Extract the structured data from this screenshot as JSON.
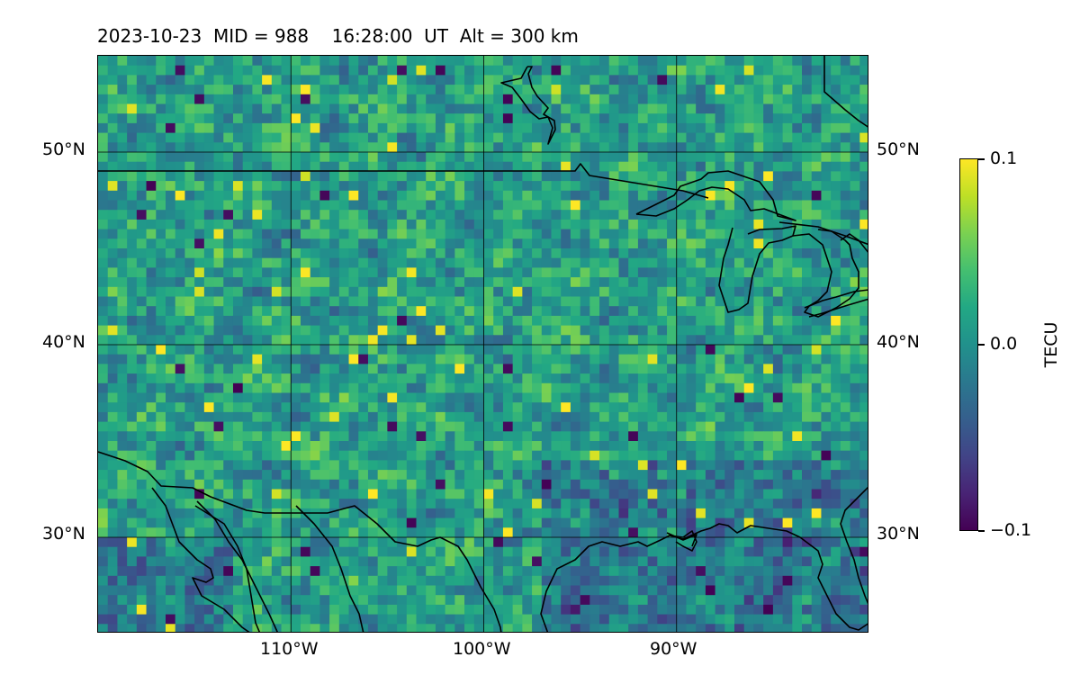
{
  "title": {
    "date": "2023-10-23",
    "mid": "MID = 988",
    "time": "16:28:00  UT",
    "alt": "Alt = 300 km"
  },
  "map": {
    "lon_range": [
      -120,
      -80
    ],
    "lat_range": [
      25,
      55
    ],
    "grid_color": "#000000",
    "coastline_color": "#000000",
    "lat_ticks": [
      {
        "value": 50,
        "label": "50°N"
      },
      {
        "value": 40,
        "label": "40°N"
      },
      {
        "value": 30,
        "label": "30°N"
      }
    ],
    "lon_ticks": [
      {
        "value": -110,
        "label": "110°W"
      },
      {
        "value": -100,
        "label": "100°W"
      },
      {
        "value": -90,
        "label": "90°W"
      }
    ],
    "field": {
      "variable": "TEC perturbation",
      "value_range": [
        -0.1,
        0.1
      ],
      "colormap": "viridis",
      "resolution_deg": 0.5
    }
  },
  "colorbar": {
    "title": "TECU",
    "min_label": "−0.1",
    "mid_label": "0.0",
    "max_label": "0.1",
    "vmin": -0.1,
    "vmax": 0.1
  }
}
